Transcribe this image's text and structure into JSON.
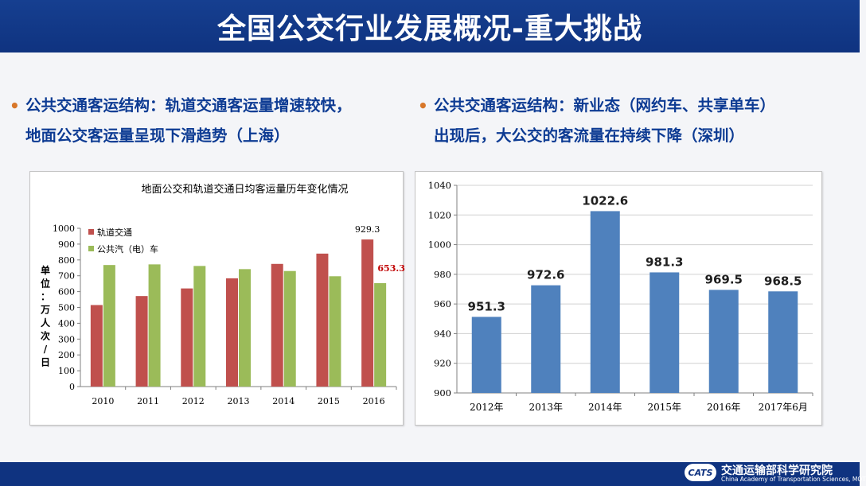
{
  "slide": {
    "title": "全国公交行业发展概况-重大挑战"
  },
  "bullets": {
    "left": {
      "marker": "•",
      "line1": "公共交通客运结构：轨道交通客运量增速较快，",
      "line2": "地面公交客运量呈现下滑趋势（上海）"
    },
    "right": {
      "marker": "•",
      "line1": "公共交通客运结构：新业态（网约车、共享单车）",
      "line2": "出现后，大公交的客流量在持续下降（深圳）"
    }
  },
  "chart_data": [
    {
      "type": "bar",
      "title": "地面公交和轨道交通日均客运量历年变化情况",
      "categories": [
        "2010",
        "2011",
        "2012",
        "2013",
        "2014",
        "2015",
        "2016"
      ],
      "series": [
        {
          "name": "轨道交通",
          "color": "#c0504d",
          "values": [
            515,
            572,
            620,
            684,
            775,
            840,
            929.3
          ]
        },
        {
          "name": "公共汽（电）车",
          "color": "#9bbb59",
          "values": [
            768,
            772,
            762,
            742,
            730,
            697,
            653.3
          ]
        }
      ],
      "data_labels": [
        "929.3",
        "653.3"
      ],
      "ylabel_chars": [
        "单",
        "位",
        "：",
        "万",
        "人",
        "次",
        "/",
        "日"
      ],
      "ylim": [
        0,
        1000
      ],
      "yticks": [
        "0",
        "100",
        "200",
        "300",
        "400",
        "500",
        "600",
        "700",
        "800",
        "900",
        "1000"
      ],
      "grid": false,
      "legend": "top-left"
    },
    {
      "type": "bar",
      "title": "",
      "categories": [
        "2012年",
        "2013年",
        "2014年",
        "2015年",
        "2016年",
        "2017年6月"
      ],
      "values": [
        951.3,
        972.6,
        1022.6,
        981.3,
        969.5,
        968.5
      ],
      "data_labels": [
        "951.3",
        "972.6",
        "1022.6",
        "981.3",
        "969.5",
        "968.5"
      ],
      "color": "#4f81bd",
      "ylim": [
        900,
        1040
      ],
      "yticks": [
        "900",
        "920",
        "940",
        "960",
        "980",
        "1000",
        "1020",
        "1040"
      ],
      "grid": true,
      "legend": "none"
    }
  ],
  "footer": {
    "logo_mark": "CATS",
    "org_cn": "交通运输部科学研究院",
    "org_en": "China Academy of Transportation Sciences, MOT"
  }
}
